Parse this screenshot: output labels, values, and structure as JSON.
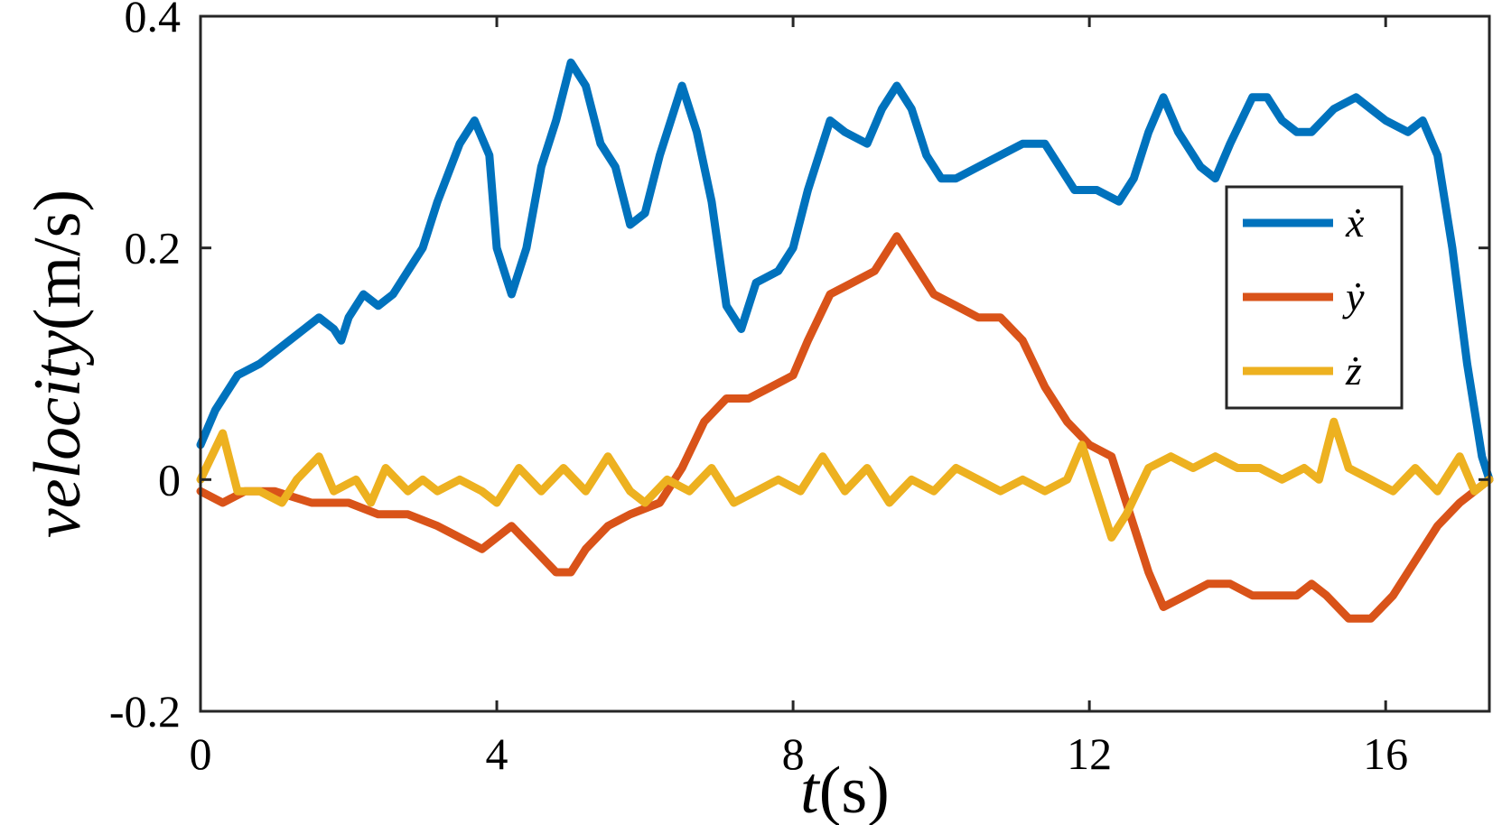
{
  "chart_data": {
    "type": "line",
    "title": "",
    "xlabel": {
      "var": "t",
      "unit": "(s)"
    },
    "ylabel": {
      "var": "velocity",
      "unit": "(m/s)"
    },
    "xlim": [
      0,
      17.4
    ],
    "ylim": [
      -0.2,
      0.4
    ],
    "xticks": [
      {
        "value": 0,
        "label": "0"
      },
      {
        "value": 4,
        "label": "4"
      },
      {
        "value": 8,
        "label": "8"
      },
      {
        "value": 12,
        "label": "12"
      },
      {
        "value": 16,
        "label": "16"
      }
    ],
    "yticks": [
      {
        "value": 0.4,
        "label": "0.4"
      },
      {
        "value": 0.2,
        "label": "0.2"
      },
      {
        "value": 0,
        "label": "0"
      },
      {
        "value": -0.2,
        "label": "-0.2"
      }
    ],
    "grid": false,
    "legend": {
      "position": "right",
      "entries": [
        "ẋ",
        "ẏ",
        "ż"
      ]
    },
    "series": [
      {
        "name": "ẋ",
        "color": "#0072BD",
        "points": [
          [
            0,
            0.03
          ],
          [
            0.2,
            0.06
          ],
          [
            0.5,
            0.09
          ],
          [
            0.8,
            0.1
          ],
          [
            1.0,
            0.11
          ],
          [
            1.2,
            0.12
          ],
          [
            1.4,
            0.13
          ],
          [
            1.6,
            0.14
          ],
          [
            1.8,
            0.13
          ],
          [
            1.9,
            0.12
          ],
          [
            2.0,
            0.14
          ],
          [
            2.2,
            0.16
          ],
          [
            2.4,
            0.15
          ],
          [
            2.6,
            0.16
          ],
          [
            2.8,
            0.18
          ],
          [
            3.0,
            0.2
          ],
          [
            3.2,
            0.24
          ],
          [
            3.5,
            0.29
          ],
          [
            3.7,
            0.31
          ],
          [
            3.9,
            0.28
          ],
          [
            4.0,
            0.2
          ],
          [
            4.2,
            0.16
          ],
          [
            4.4,
            0.2
          ],
          [
            4.6,
            0.27
          ],
          [
            4.8,
            0.31
          ],
          [
            5.0,
            0.36
          ],
          [
            5.2,
            0.34
          ],
          [
            5.4,
            0.29
          ],
          [
            5.6,
            0.27
          ],
          [
            5.8,
            0.22
          ],
          [
            6.0,
            0.23
          ],
          [
            6.2,
            0.28
          ],
          [
            6.5,
            0.34
          ],
          [
            6.7,
            0.3
          ],
          [
            6.9,
            0.24
          ],
          [
            7.1,
            0.15
          ],
          [
            7.3,
            0.13
          ],
          [
            7.5,
            0.17
          ],
          [
            7.8,
            0.18
          ],
          [
            8.0,
            0.2
          ],
          [
            8.2,
            0.25
          ],
          [
            8.5,
            0.31
          ],
          [
            8.7,
            0.3
          ],
          [
            9.0,
            0.29
          ],
          [
            9.2,
            0.32
          ],
          [
            9.4,
            0.34
          ],
          [
            9.6,
            0.32
          ],
          [
            9.8,
            0.28
          ],
          [
            10.0,
            0.26
          ],
          [
            10.2,
            0.26
          ],
          [
            10.5,
            0.27
          ],
          [
            10.8,
            0.28
          ],
          [
            11.1,
            0.29
          ],
          [
            11.4,
            0.29
          ],
          [
            11.6,
            0.27
          ],
          [
            11.8,
            0.25
          ],
          [
            12.1,
            0.25
          ],
          [
            12.4,
            0.24
          ],
          [
            12.6,
            0.26
          ],
          [
            12.8,
            0.3
          ],
          [
            13.0,
            0.33
          ],
          [
            13.2,
            0.3
          ],
          [
            13.5,
            0.27
          ],
          [
            13.7,
            0.26
          ],
          [
            13.9,
            0.29
          ],
          [
            14.2,
            0.33
          ],
          [
            14.4,
            0.33
          ],
          [
            14.6,
            0.31
          ],
          [
            14.8,
            0.3
          ],
          [
            15.0,
            0.3
          ],
          [
            15.3,
            0.32
          ],
          [
            15.6,
            0.33
          ],
          [
            15.8,
            0.32
          ],
          [
            16.0,
            0.31
          ],
          [
            16.3,
            0.3
          ],
          [
            16.5,
            0.31
          ],
          [
            16.7,
            0.28
          ],
          [
            16.9,
            0.2
          ],
          [
            17.1,
            0.1
          ],
          [
            17.3,
            0.02
          ],
          [
            17.4,
            0.0
          ]
        ]
      },
      {
        "name": "ẏ",
        "color": "#D95319",
        "points": [
          [
            0,
            -0.01
          ],
          [
            0.3,
            -0.02
          ],
          [
            0.6,
            -0.01
          ],
          [
            1.0,
            -0.01
          ],
          [
            1.5,
            -0.02
          ],
          [
            2.0,
            -0.02
          ],
          [
            2.4,
            -0.03
          ],
          [
            2.8,
            -0.03
          ],
          [
            3.2,
            -0.04
          ],
          [
            3.5,
            -0.05
          ],
          [
            3.8,
            -0.06
          ],
          [
            4.0,
            -0.05
          ],
          [
            4.2,
            -0.04
          ],
          [
            4.5,
            -0.06
          ],
          [
            4.8,
            -0.08
          ],
          [
            5.0,
            -0.08
          ],
          [
            5.2,
            -0.06
          ],
          [
            5.5,
            -0.04
          ],
          [
            5.8,
            -0.03
          ],
          [
            6.2,
            -0.02
          ],
          [
            6.5,
            0.01
          ],
          [
            6.8,
            0.05
          ],
          [
            7.1,
            0.07
          ],
          [
            7.4,
            0.07
          ],
          [
            7.7,
            0.08
          ],
          [
            8.0,
            0.09
          ],
          [
            8.2,
            0.12
          ],
          [
            8.5,
            0.16
          ],
          [
            8.8,
            0.17
          ],
          [
            9.1,
            0.18
          ],
          [
            9.4,
            0.21
          ],
          [
            9.6,
            0.19
          ],
          [
            9.9,
            0.16
          ],
          [
            10.2,
            0.15
          ],
          [
            10.5,
            0.14
          ],
          [
            10.8,
            0.14
          ],
          [
            11.1,
            0.12
          ],
          [
            11.4,
            0.08
          ],
          [
            11.7,
            0.05
          ],
          [
            12.0,
            0.03
          ],
          [
            12.3,
            0.02
          ],
          [
            12.6,
            -0.04
          ],
          [
            12.8,
            -0.08
          ],
          [
            13.0,
            -0.11
          ],
          [
            13.3,
            -0.1
          ],
          [
            13.6,
            -0.09
          ],
          [
            13.9,
            -0.09
          ],
          [
            14.2,
            -0.1
          ],
          [
            14.5,
            -0.1
          ],
          [
            14.8,
            -0.1
          ],
          [
            15.0,
            -0.09
          ],
          [
            15.2,
            -0.1
          ],
          [
            15.5,
            -0.12
          ],
          [
            15.8,
            -0.12
          ],
          [
            16.1,
            -0.1
          ],
          [
            16.4,
            -0.07
          ],
          [
            16.7,
            -0.04
          ],
          [
            17.0,
            -0.02
          ],
          [
            17.4,
            0.0
          ]
        ]
      },
      {
        "name": "ż",
        "color": "#EDB120",
        "points": [
          [
            0,
            0.0
          ],
          [
            0.3,
            0.04
          ],
          [
            0.5,
            -0.01
          ],
          [
            0.8,
            -0.01
          ],
          [
            1.1,
            -0.02
          ],
          [
            1.3,
            0.0
          ],
          [
            1.6,
            0.02
          ],
          [
            1.8,
            -0.01
          ],
          [
            2.1,
            0.0
          ],
          [
            2.3,
            -0.02
          ],
          [
            2.5,
            0.01
          ],
          [
            2.8,
            -0.01
          ],
          [
            3.0,
            0.0
          ],
          [
            3.2,
            -0.01
          ],
          [
            3.5,
            0.0
          ],
          [
            3.8,
            -0.01
          ],
          [
            4.0,
            -0.02
          ],
          [
            4.3,
            0.01
          ],
          [
            4.6,
            -0.01
          ],
          [
            4.9,
            0.01
          ],
          [
            5.2,
            -0.01
          ],
          [
            5.5,
            0.02
          ],
          [
            5.8,
            -0.01
          ],
          [
            6.0,
            -0.02
          ],
          [
            6.3,
            0.0
          ],
          [
            6.6,
            -0.01
          ],
          [
            6.9,
            0.01
          ],
          [
            7.2,
            -0.02
          ],
          [
            7.5,
            -0.01
          ],
          [
            7.8,
            0.0
          ],
          [
            8.1,
            -0.01
          ],
          [
            8.4,
            0.02
          ],
          [
            8.7,
            -0.01
          ],
          [
            9.0,
            0.01
          ],
          [
            9.3,
            -0.02
          ],
          [
            9.6,
            0.0
          ],
          [
            9.9,
            -0.01
          ],
          [
            10.2,
            0.01
          ],
          [
            10.5,
            0.0
          ],
          [
            10.8,
            -0.01
          ],
          [
            11.1,
            0.0
          ],
          [
            11.4,
            -0.01
          ],
          [
            11.7,
            0.0
          ],
          [
            11.9,
            0.03
          ],
          [
            12.1,
            -0.01
          ],
          [
            12.3,
            -0.05
          ],
          [
            12.5,
            -0.03
          ],
          [
            12.8,
            0.01
          ],
          [
            13.1,
            0.02
          ],
          [
            13.4,
            0.01
          ],
          [
            13.7,
            0.02
          ],
          [
            14.0,
            0.01
          ],
          [
            14.3,
            0.01
          ],
          [
            14.6,
            0.0
          ],
          [
            14.9,
            0.01
          ],
          [
            15.1,
            0.0
          ],
          [
            15.3,
            0.05
          ],
          [
            15.5,
            0.01
          ],
          [
            15.8,
            0.0
          ],
          [
            16.1,
            -0.01
          ],
          [
            16.4,
            0.01
          ],
          [
            16.7,
            -0.01
          ],
          [
            17.0,
            0.02
          ],
          [
            17.2,
            -0.01
          ],
          [
            17.4,
            0.0
          ]
        ]
      }
    ]
  }
}
